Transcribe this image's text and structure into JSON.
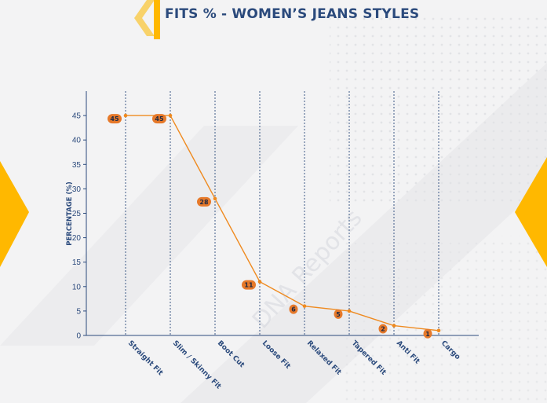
{
  "title": "FITS % - WOMEN’S JEANS STYLES",
  "watermark": "DNA Reports",
  "colors": {
    "line": "#ef8a1f",
    "label_bg": "#e6792a",
    "label_text": "#1f2a44",
    "axis": "#2b4a7c",
    "text": "#2b4a7c",
    "accent": "#ffb800"
  },
  "chart_data": {
    "type": "line",
    "title": "FITS % - WOMEN’S JEANS STYLES",
    "xlabel": "",
    "ylabel": "PERCENTAGE (%)",
    "ylim": [
      0,
      50
    ],
    "yticks": [
      0,
      5,
      10,
      15,
      20,
      25,
      30,
      35,
      40,
      45
    ],
    "grid": "vertical dashed lines at each category",
    "legend": "none",
    "categories": [
      "Straight Fit",
      "Slim / Skinny Fit",
      "Boot Cut",
      "Loose Fit",
      "Relaxed Fit",
      "Tapered Fit",
      "Anti Fit",
      "Cargo"
    ],
    "series": [
      {
        "values": [
          45,
          45,
          28,
          11,
          6,
          5,
          2,
          1
        ],
        "data_labels": [
          "45",
          "45",
          "28",
          "11",
          "6",
          "5",
          "2",
          "1"
        ]
      }
    ]
  }
}
